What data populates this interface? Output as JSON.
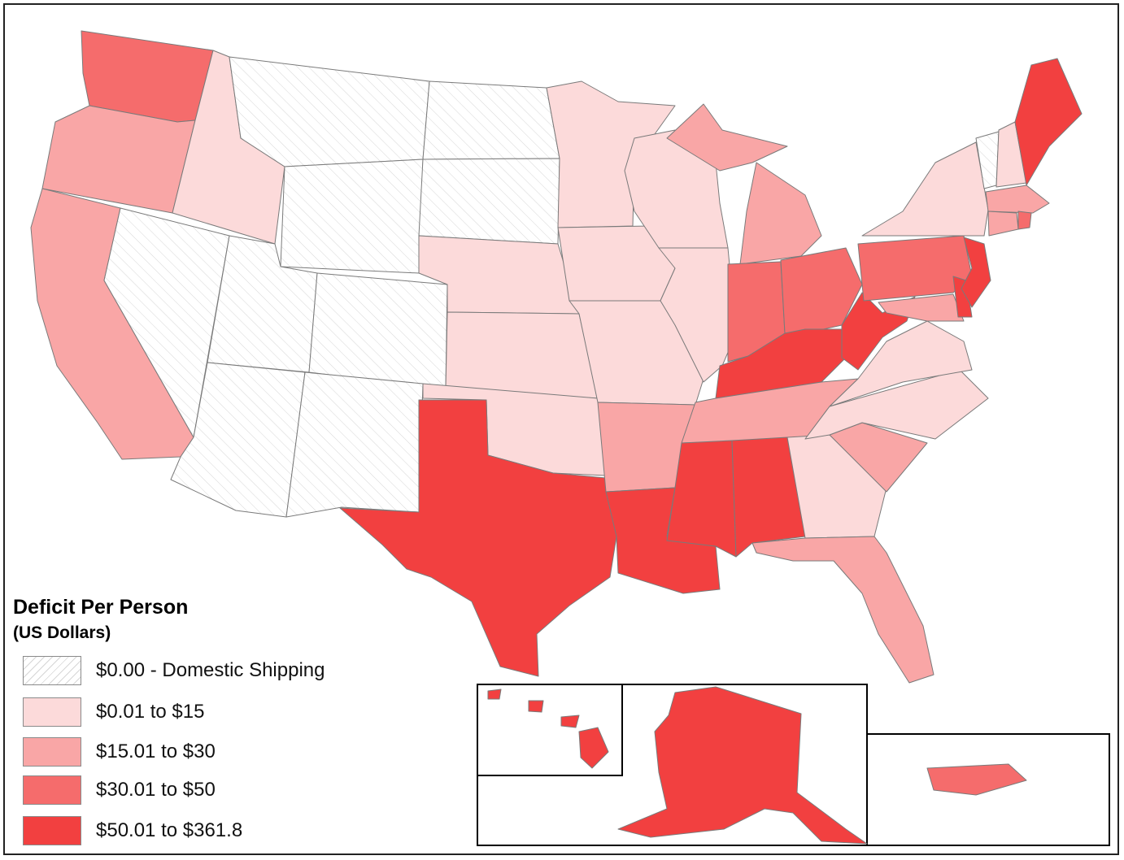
{
  "legend": {
    "title": "Deficit Per Person",
    "subtitle": "(US Dollars)",
    "classes": [
      {
        "label": "$0.00 - Domestic Shipping",
        "color": "#ffffff",
        "pattern": "hatch"
      },
      {
        "label": "$0.01 to $15",
        "color": "#fcdada"
      },
      {
        "label": "$15.01 to $30",
        "color": "#f9a6a6"
      },
      {
        "label": "$30.01 to $50",
        "color": "#f56c6c"
      },
      {
        "label": "$50.01 to $361.8",
        "color": "#f24040"
      }
    ]
  },
  "map": {
    "region_class": {
      "washington": 3,
      "oregon": 2,
      "california": 2,
      "idaho": 1,
      "nevada": 0,
      "montana": 0,
      "wyoming": 0,
      "utah": 0,
      "colorado": 0,
      "arizona": 0,
      "new-mexico": 0,
      "north-dakota": 0,
      "south-dakota": 0,
      "nebraska": 1,
      "kansas": 1,
      "oklahoma": 1,
      "texas": 4,
      "minnesota": 1,
      "iowa": 1,
      "missouri": 1,
      "arkansas": 2,
      "louisiana": 4,
      "wisconsin": 1,
      "illinois": 1,
      "michigan-lower": 2,
      "michigan-upper": 2,
      "indiana": 3,
      "ohio": 3,
      "kentucky": 4,
      "tennessee": 2,
      "mississippi": 4,
      "alabama": 4,
      "georgia": 1,
      "florida": 2,
      "south-carolina": 2,
      "north-carolina": 1,
      "virginia": 1,
      "west-virginia": 4,
      "pennsylvania": 3,
      "new-york": 1,
      "new-jersey": 4,
      "delaware": 4,
      "maryland": 2,
      "vermont": 0,
      "new-hampshire": 1,
      "maine": 4,
      "massachusetts": 2,
      "connecticut": 2,
      "rhode-island": 3,
      "alaska": 4,
      "hawaii": 4,
      "puerto-rico": 3
    }
  }
}
